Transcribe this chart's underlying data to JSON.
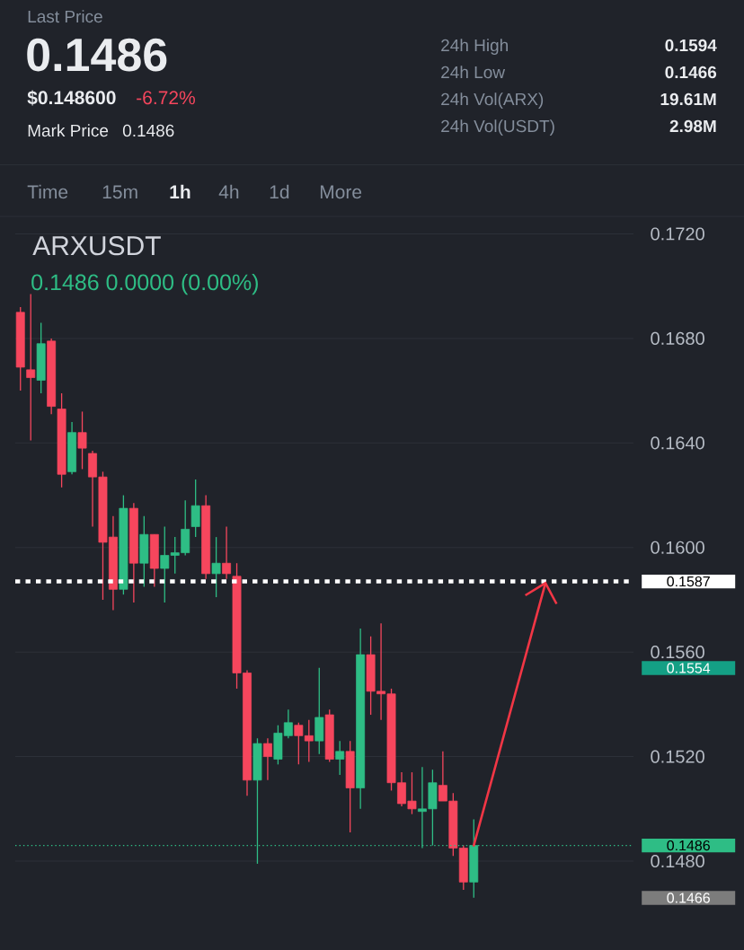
{
  "chart_data": {
    "type": "candlestick",
    "title": "ARXUSDT",
    "subtitle": "0.1486 0.0000 (0.00%)",
    "categories": [
      null,
      null,
      null,
      null,
      null,
      null,
      null,
      null,
      null,
      null,
      null,
      null,
      null,
      null,
      null,
      null,
      null,
      null,
      null,
      null,
      null,
      null,
      null,
      null,
      null,
      null,
      null,
      null,
      null,
      null,
      null,
      null,
      null,
      null,
      null,
      null,
      null,
      null,
      null,
      null,
      null,
      null,
      null,
      null,
      null,
      null,
      null,
      null,
      null,
      null,
      null,
      null,
      null,
      null,
      null,
      null,
      null,
      null,
      null,
      null
    ],
    "ohlc": [
      [
        0.169,
        0.1692,
        0.166,
        0.1669
      ],
      [
        0.1668,
        0.1697,
        0.1641,
        0.1665
      ],
      [
        0.1664,
        0.1686,
        0.1659,
        0.1678
      ],
      [
        0.1679,
        0.168,
        0.1651,
        0.1654
      ],
      [
        0.1653,
        0.1659,
        0.1623,
        0.1628
      ],
      [
        0.1629,
        0.1648,
        0.1628,
        0.1644
      ],
      [
        0.1644,
        0.1652,
        0.163,
        0.1638
      ],
      [
        0.1636,
        0.1637,
        0.1608,
        0.1627
      ],
      [
        0.1627,
        0.1629,
        0.158,
        0.1602
      ],
      [
        0.1604,
        0.1612,
        0.1576,
        0.1584
      ],
      [
        0.1584,
        0.162,
        0.1582,
        0.1615
      ],
      [
        0.1615,
        0.1617,
        0.1579,
        0.1594
      ],
      [
        0.1594,
        0.1612,
        0.1585,
        0.1605
      ],
      [
        0.1605,
        0.1605,
        0.1585,
        0.1592
      ],
      [
        0.1592,
        0.1608,
        0.1579,
        0.1597
      ],
      [
        0.1597,
        0.1604,
        0.159,
        0.1598
      ],
      [
        0.1598,
        0.1618,
        0.1597,
        0.1607
      ],
      [
        0.1608,
        0.1626,
        0.1604,
        0.1616
      ],
      [
        0.1616,
        0.162,
        0.1588,
        0.159
      ],
      [
        0.159,
        0.1604,
        0.1581,
        0.1594
      ],
      [
        0.1594,
        0.1608,
        0.1588,
        0.159
      ],
      [
        0.1589,
        0.1594,
        0.1546,
        0.1552
      ],
      [
        0.1552,
        0.1553,
        0.1505,
        0.1511
      ],
      [
        0.1511,
        0.1527,
        0.1479,
        0.1525
      ],
      [
        0.1525,
        0.1527,
        0.1511,
        0.152
      ],
      [
        0.1519,
        0.1532,
        0.1517,
        0.1529
      ],
      [
        0.1528,
        0.1538,
        0.1527,
        0.1533
      ],
      [
        0.1532,
        0.1533,
        0.1517,
        0.1528
      ],
      [
        0.1528,
        0.1534,
        0.1518,
        0.1526
      ],
      [
        0.1526,
        0.1554,
        0.1521,
        0.1535
      ],
      [
        0.1536,
        0.1538,
        0.1518,
        0.1519
      ],
      [
        0.1519,
        0.1526,
        0.1513,
        0.1522
      ],
      [
        0.1522,
        0.1526,
        0.1491,
        0.1508
      ],
      [
        0.1508,
        0.1569,
        0.15,
        0.1559
      ],
      [
        0.1559,
        0.1566,
        0.1536,
        0.1545
      ],
      [
        0.1545,
        0.1571,
        0.1534,
        0.1544
      ],
      [
        0.1544,
        0.1546,
        0.1507,
        0.151
      ],
      [
        0.151,
        0.1514,
        0.1501,
        0.1502
      ],
      [
        0.1503,
        0.1514,
        0.1498,
        0.15
      ],
      [
        0.1499,
        0.1516,
        0.1485,
        0.15
      ],
      [
        0.15,
        0.1515,
        0.1486,
        0.151
      ],
      [
        0.1509,
        0.1522,
        0.1503,
        0.1503
      ],
      [
        0.1503,
        0.1506,
        0.1482,
        0.1485
      ],
      [
        0.1485,
        0.1486,
        0.1469,
        0.1472
      ],
      [
        0.1472,
        0.1496,
        0.1466,
        0.1486
      ],
      null,
      null,
      null,
      null,
      null,
      null,
      null,
      null,
      null,
      null,
      null,
      null,
      null,
      null,
      null
    ],
    "colors": [
      "#f6465d",
      "#f6465d",
      "#2ebd85",
      "#f6465d",
      "#f6465d",
      "#2ebd85",
      "#f6465d",
      "#f6465d",
      "#f6465d",
      "#f6465d",
      "#2ebd85",
      "#f6465d",
      "#2ebd85",
      "#f6465d",
      "#2ebd85",
      "#2ebd85",
      "#2ebd85",
      "#2ebd85",
      "#f6465d",
      "#2ebd85",
      "#f6465d",
      "#f6465d",
      "#f6465d",
      "#2ebd85",
      "#f6465d",
      "#2ebd85",
      "#2ebd85",
      "#f6465d",
      "#f6465d",
      "#2ebd85",
      "#f6465d",
      "#2ebd85",
      "#f6465d",
      "#2ebd85",
      "#f6465d",
      "#f6465d",
      "#f6465d",
      "#f6465d",
      "#f6465d",
      "#2ebd85",
      "#2ebd85",
      "#f6465d",
      "#f6465d",
      "#f6465d",
      "#2ebd85",
      null,
      null,
      null,
      null,
      null,
      null,
      null,
      null,
      null,
      null,
      null,
      null,
      null,
      null,
      null
    ],
    "ylim": [
      0.1446,
      0.1726
    ],
    "yticks": [
      {
        "value": 0.148,
        "label": "0.1480"
      },
      {
        "value": 0.152,
        "label": "0.1520"
      },
      {
        "value": 0.156,
        "label": "0.1560"
      },
      {
        "value": 0.16,
        "label": "0.1600"
      },
      {
        "value": 0.164,
        "label": "0.1640"
      },
      {
        "value": 0.168,
        "label": "0.1680"
      },
      {
        "value": 0.172,
        "label": "0.1720"
      }
    ],
    "grid": "y",
    "tick_labels": "y",
    "ref_lines": [
      {
        "axis": "y",
        "value": 0.1587,
        "label": "0.1587",
        "color": "#ffffff",
        "line_style": "dotted"
      },
      {
        "axis": "y",
        "value": 0.1486,
        "label": "0.1486",
        "color": "#2ebd85",
        "line_style": "dotted"
      }
    ],
    "annotations": [
      "Last Price",
      "0.1486",
      "$0.148600",
      "-6.72%",
      "Mark Price",
      "0.1486",
      "24h High",
      "0.1594",
      "24h Low",
      "0.1466",
      "24h Vol(ARX)",
      "19.61M",
      "24h Vol(USDT)",
      "2.98M",
      "Time",
      "15m",
      "1h",
      "4h",
      "1d",
      "More",
      "0.1554",
      "0.1466"
    ]
  }
}
